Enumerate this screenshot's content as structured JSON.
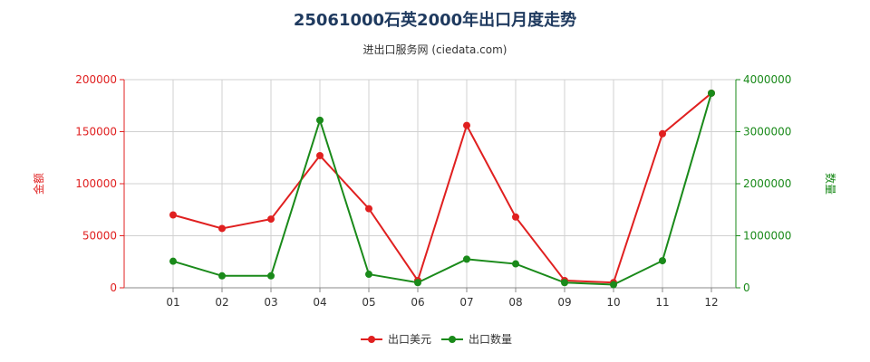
{
  "chart_data": {
    "type": "line",
    "title": "25061000石英2000年出口月度走势",
    "subtitle": "进出口服务网 (ciedata.com)",
    "categories": [
      "01",
      "02",
      "03",
      "04",
      "05",
      "06",
      "07",
      "08",
      "09",
      "10",
      "11",
      "12"
    ],
    "y_left": {
      "label": "金额",
      "ylim": [
        0,
        200000
      ],
      "ticks": [
        "0",
        "50000",
        "100000",
        "150000",
        "200000"
      ],
      "color": "#e02020"
    },
    "y_right": {
      "label": "数量",
      "ylim": [
        0,
        4000000
      ],
      "ticks": [
        "0",
        "1000000",
        "2000000",
        "3000000",
        "4000000"
      ],
      "color": "#1a8a1a"
    },
    "series": [
      {
        "name": "出口美元",
        "axis": "left",
        "color": "#e02020",
        "values": [
          70000,
          57000,
          66000,
          127000,
          76000,
          7000,
          156000,
          68000,
          7000,
          5000,
          148000,
          187000
        ]
      },
      {
        "name": "出口数量",
        "axis": "right",
        "color": "#1a8a1a",
        "values": [
          510000,
          230000,
          230000,
          3220000,
          260000,
          100000,
          550000,
          460000,
          100000,
          60000,
          520000,
          3740000
        ]
      }
    ],
    "grid": true,
    "legend_position": "bottom-center"
  }
}
